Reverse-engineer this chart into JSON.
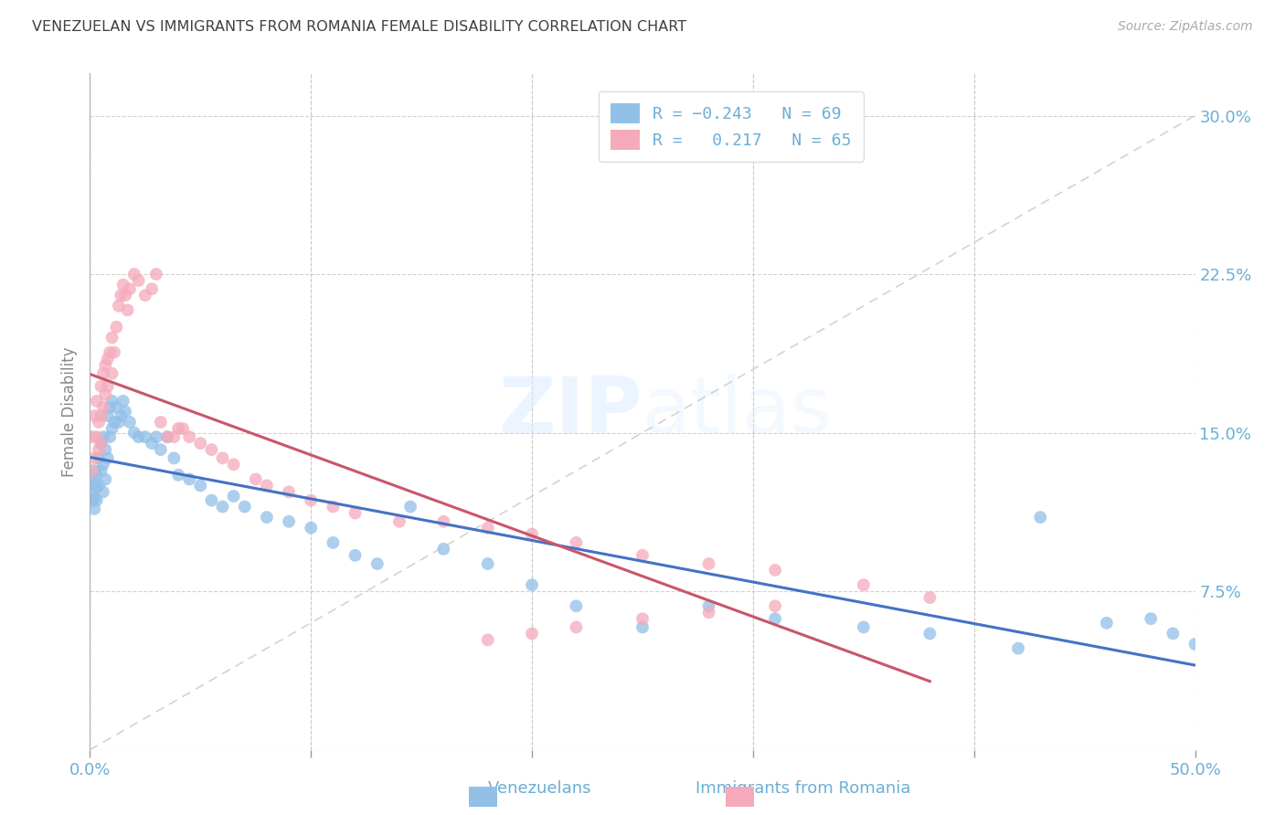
{
  "title": "VENEZUELAN VS IMMIGRANTS FROM ROMANIA FEMALE DISABILITY CORRELATION CHART",
  "source": "Source: ZipAtlas.com",
  "ylabel": "Female Disability",
  "xlim": [
    0.0,
    0.5
  ],
  "ylim": [
    0.0,
    0.32
  ],
  "xticks": [
    0.0,
    0.1,
    0.2,
    0.3,
    0.4,
    0.5
  ],
  "xticklabels": [
    "0.0%",
    "",
    "",
    "",
    "",
    "50.0%"
  ],
  "yticks": [
    0.075,
    0.15,
    0.225,
    0.3
  ],
  "yticklabels": [
    "7.5%",
    "15.0%",
    "22.5%",
    "30.0%"
  ],
  "legend_line1": "R = -0.243   N = 69",
  "legend_line2": "R =  0.217   N = 65",
  "color_blue": "#92C0E8",
  "color_pink": "#F4AABA",
  "line_color_blue": "#4472C4",
  "line_color_pink": "#C9566A",
  "line_color_diag": "#C8C8C8",
  "watermark_zip": "ZIP",
  "watermark_atlas": "atlas",
  "title_color": "#404040",
  "axis_tick_color": "#6BAED6",
  "venezuelan_x": [
    0.001,
    0.001,
    0.001,
    0.002,
    0.002,
    0.002,
    0.002,
    0.003,
    0.003,
    0.003,
    0.004,
    0.004,
    0.005,
    0.005,
    0.006,
    0.006,
    0.006,
    0.007,
    0.007,
    0.008,
    0.008,
    0.009,
    0.009,
    0.01,
    0.01,
    0.011,
    0.012,
    0.013,
    0.014,
    0.015,
    0.016,
    0.018,
    0.02,
    0.022,
    0.025,
    0.028,
    0.03,
    0.032,
    0.035,
    0.038,
    0.04,
    0.045,
    0.05,
    0.055,
    0.06,
    0.065,
    0.07,
    0.08,
    0.09,
    0.1,
    0.11,
    0.12,
    0.13,
    0.145,
    0.16,
    0.18,
    0.2,
    0.22,
    0.25,
    0.28,
    0.31,
    0.35,
    0.38,
    0.42,
    0.46,
    0.48,
    0.49,
    0.5,
    0.43
  ],
  "venezuelan_y": [
    0.128,
    0.122,
    0.118,
    0.132,
    0.125,
    0.119,
    0.114,
    0.13,
    0.124,
    0.118,
    0.138,
    0.125,
    0.145,
    0.132,
    0.148,
    0.135,
    0.122,
    0.142,
    0.128,
    0.158,
    0.138,
    0.162,
    0.148,
    0.165,
    0.152,
    0.155,
    0.162,
    0.155,
    0.158,
    0.165,
    0.16,
    0.155,
    0.15,
    0.148,
    0.148,
    0.145,
    0.148,
    0.142,
    0.148,
    0.138,
    0.13,
    0.128,
    0.125,
    0.118,
    0.115,
    0.12,
    0.115,
    0.11,
    0.108,
    0.105,
    0.098,
    0.092,
    0.088,
    0.115,
    0.095,
    0.088,
    0.078,
    0.068,
    0.058,
    0.068,
    0.062,
    0.058,
    0.055,
    0.048,
    0.06,
    0.062,
    0.055,
    0.05,
    0.11
  ],
  "romania_x": [
    0.001,
    0.001,
    0.002,
    0.002,
    0.003,
    0.003,
    0.004,
    0.004,
    0.005,
    0.005,
    0.005,
    0.006,
    0.006,
    0.007,
    0.007,
    0.008,
    0.008,
    0.009,
    0.01,
    0.01,
    0.011,
    0.012,
    0.013,
    0.014,
    0.015,
    0.016,
    0.017,
    0.018,
    0.02,
    0.022,
    0.025,
    0.028,
    0.03,
    0.032,
    0.035,
    0.038,
    0.042,
    0.045,
    0.05,
    0.055,
    0.06,
    0.065,
    0.075,
    0.08,
    0.09,
    0.1,
    0.11,
    0.12,
    0.14,
    0.16,
    0.18,
    0.2,
    0.22,
    0.25,
    0.28,
    0.31,
    0.35,
    0.38,
    0.31,
    0.28,
    0.25,
    0.22,
    0.2,
    0.18,
    0.04
  ],
  "romania_y": [
    0.148,
    0.132,
    0.158,
    0.138,
    0.165,
    0.148,
    0.155,
    0.142,
    0.172,
    0.158,
    0.145,
    0.178,
    0.162,
    0.182,
    0.168,
    0.185,
    0.172,
    0.188,
    0.195,
    0.178,
    0.188,
    0.2,
    0.21,
    0.215,
    0.22,
    0.215,
    0.208,
    0.218,
    0.225,
    0.222,
    0.215,
    0.218,
    0.225,
    0.155,
    0.148,
    0.148,
    0.152,
    0.148,
    0.145,
    0.142,
    0.138,
    0.135,
    0.128,
    0.125,
    0.122,
    0.118,
    0.115,
    0.112,
    0.108,
    0.108,
    0.105,
    0.102,
    0.098,
    0.092,
    0.088,
    0.085,
    0.078,
    0.072,
    0.068,
    0.065,
    0.062,
    0.058,
    0.055,
    0.052,
    0.152
  ]
}
